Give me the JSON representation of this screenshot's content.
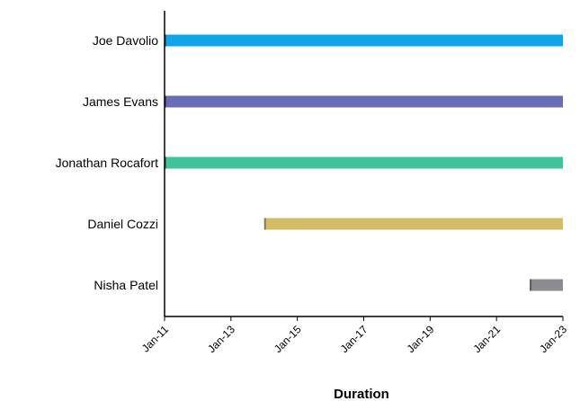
{
  "chart_data": {
    "type": "bar",
    "orientation": "horizontal",
    "title": "",
    "xlabel": "Duration",
    "ylabel": "",
    "x_axis_type": "date",
    "xlim": [
      "Jan-11",
      "Jan-23"
    ],
    "x_ticks": [
      "Jan-11",
      "Jan-13",
      "Jan-15",
      "Jan-17",
      "Jan-19",
      "Jan-21",
      "Jan-23"
    ],
    "grid": false,
    "legend": "none",
    "categories": [
      "Joe Davolio",
      "James Evans",
      "Jonathan Rocafort",
      "Daniel Cozzi",
      "Nisha Patel"
    ],
    "bars": [
      {
        "name": "Joe Davolio",
        "start": "Jan-11",
        "end": "Jan-23",
        "color": "#0fa5e8"
      },
      {
        "name": "James Evans",
        "start": "Jan-11",
        "end": "Jan-23",
        "color": "#6a6cb8"
      },
      {
        "name": "Jonathan Rocafort",
        "start": "Jan-11",
        "end": "Jan-23",
        "color": "#3ec39a"
      },
      {
        "name": "Daniel Cozzi",
        "start": "Jan-14",
        "end": "Jan-23",
        "color": "#d4bb67"
      },
      {
        "name": "Nisha Patel",
        "start": "Jan-22",
        "end": "Jan-23",
        "color": "#8c8d91"
      }
    ]
  }
}
